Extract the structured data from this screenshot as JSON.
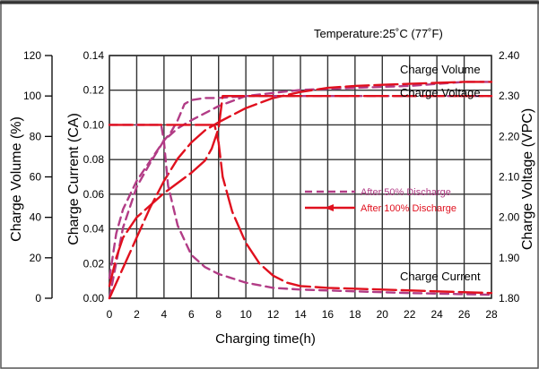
{
  "chart_data": {
    "type": "line",
    "title": "Temperature:25˚C (77˚F)",
    "xlabel": "Charging time(h)",
    "ylabel_volume": "Charge Volume (%)",
    "ylabel_current": "Charge Current (CA)",
    "ylabel_voltage": "Charge Voltage (VPC)",
    "x_ticks": [
      "0",
      "2",
      "4",
      "6",
      "8",
      "10",
      "12",
      "14",
      "16",
      "18",
      "20",
      "22",
      "24",
      "26",
      "28"
    ],
    "xlim": [
      0,
      28
    ],
    "y_volume": {
      "ticks": [
        "0",
        "20",
        "40",
        "60",
        "80",
        "100",
        "120"
      ],
      "lim": [
        0,
        120
      ]
    },
    "y_current": {
      "ticks": [
        "0.00",
        "0.02",
        "0.04",
        "0.06",
        "0.08",
        "0.10",
        "0.12",
        "0.14"
      ],
      "lim": [
        0,
        0.14
      ]
    },
    "y_voltage": {
      "ticks": [
        "1.80",
        "1.90",
        "2.00",
        "2.10",
        "2.20",
        "2.30",
        "2.40"
      ],
      "lim": [
        1.8,
        2.4
      ]
    },
    "curve_labels": {
      "charge_volume": "Charge Volume",
      "charge_voltage": "Charge Voltage",
      "charge_current": "Charge Current"
    },
    "legend": [
      {
        "name": "After 50% Discharge",
        "color": "#b23c86",
        "dash": "dashed"
      },
      {
        "name": "After 100% Discharge",
        "color": "#e0101e",
        "dash": "solid"
      }
    ],
    "series": [
      {
        "name": "Charge Volume – After 50% Discharge",
        "axis": "volume",
        "color": "#b23c86",
        "x": [
          0,
          1,
          2,
          3,
          4,
          5,
          6,
          8,
          10,
          14,
          18,
          22,
          26,
          28
        ],
        "y": [
          0,
          35,
          55,
          67,
          78,
          84,
          88,
          95,
          100,
          103,
          104,
          105,
          107,
          107
        ]
      },
      {
        "name": "Charge Volume – After 100% Discharge",
        "axis": "volume",
        "color": "#e0101e",
        "x": [
          0,
          1,
          2,
          3,
          4,
          5,
          6,
          7,
          8,
          10,
          12,
          14,
          16,
          18,
          20,
          22,
          24,
          26,
          28
        ],
        "y": [
          0,
          15,
          30,
          45,
          58,
          69,
          77,
          83,
          87,
          94,
          99,
          102,
          104,
          105,
          105.5,
          106,
          106.5,
          107,
          107
        ]
      },
      {
        "name": "Charge Voltage – After 50% Discharge",
        "axis": "voltage",
        "color": "#b23c86",
        "x": [
          0,
          0.5,
          1,
          2,
          3,
          4,
          4.5,
          5,
          5.5,
          6,
          7,
          8,
          10,
          12,
          16,
          20,
          24,
          28
        ],
        "y": [
          1.85,
          1.96,
          2.02,
          2.09,
          2.14,
          2.19,
          2.21,
          2.24,
          2.28,
          2.29,
          2.295,
          2.295,
          2.3,
          2.3,
          2.3,
          2.3,
          2.3,
          2.3
        ]
      },
      {
        "name": "Charge Voltage – After 100% Discharge",
        "axis": "voltage",
        "color": "#e0101e",
        "x": [
          0,
          0.5,
          1,
          2,
          4,
          6,
          7,
          7.5,
          8,
          8.3,
          10,
          14,
          20,
          28
        ],
        "y": [
          1.83,
          1.9,
          1.95,
          2.0,
          2.06,
          2.11,
          2.14,
          2.17,
          2.22,
          2.3,
          2.3,
          2.3,
          2.3,
          2.3
        ]
      },
      {
        "name": "Charge Current – After 50% Discharge",
        "axis": "current",
        "color": "#b23c86",
        "x": [
          0,
          3.8,
          4,
          4.3,
          5,
          6,
          7,
          8,
          10,
          12,
          14,
          18,
          22,
          28
        ],
        "y": [
          0.1,
          0.1,
          0.09,
          0.065,
          0.042,
          0.025,
          0.018,
          0.014,
          0.009,
          0.006,
          0.005,
          0.004,
          0.003,
          0.002
        ]
      },
      {
        "name": "Charge Current – After 100% Discharge",
        "axis": "current",
        "color": "#e0101e",
        "x": [
          0,
          7.7,
          8,
          8.3,
          9,
          10,
          11,
          12,
          13,
          14,
          16,
          20,
          24,
          28
        ],
        "y": [
          0.1,
          0.1,
          0.09,
          0.07,
          0.05,
          0.032,
          0.02,
          0.013,
          0.009,
          0.007,
          0.006,
          0.005,
          0.004,
          0.003
        ]
      }
    ]
  }
}
